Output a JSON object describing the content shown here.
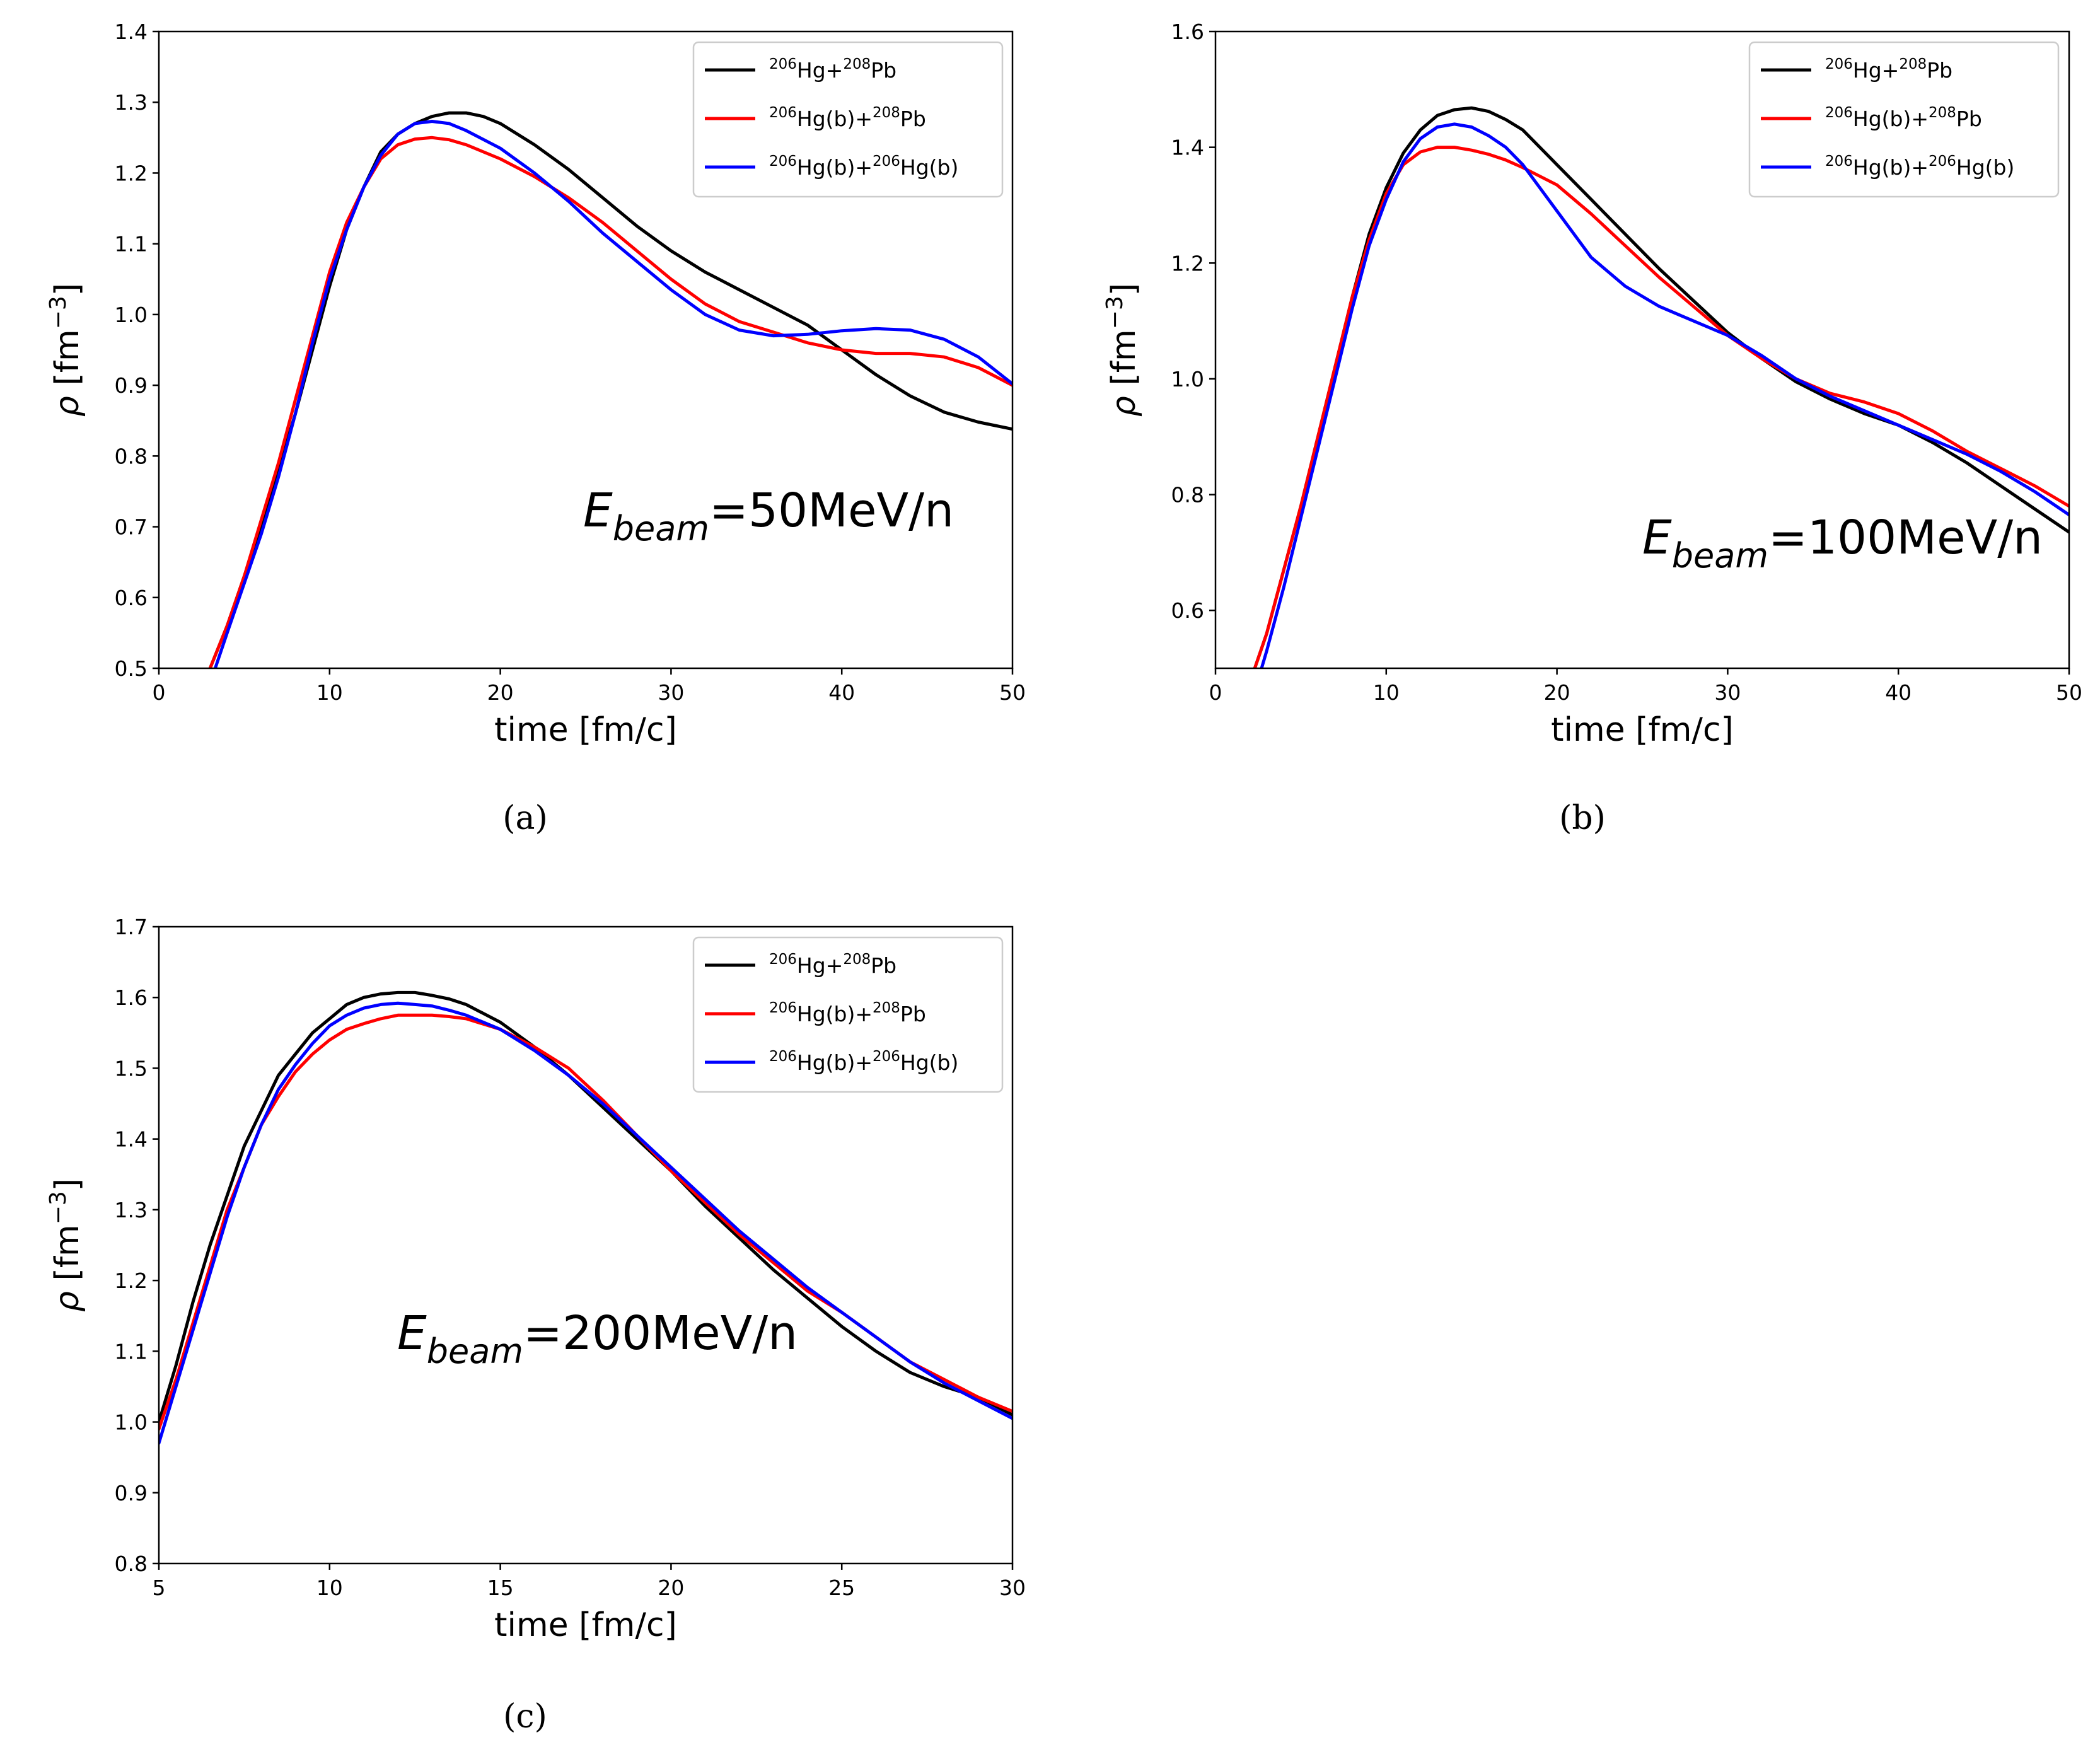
{
  "colors": {
    "black": "#000000",
    "red": "#ff0000",
    "blue": "#0000ff"
  },
  "legend_entries": [
    {
      "color": "#000000",
      "parts": [
        {
          "t": "206",
          "sup": true
        },
        {
          "t": "Hg+"
        },
        {
          "t": "208",
          "sup": true
        },
        {
          "t": "Pb"
        }
      ]
    },
    {
      "color": "#ff0000",
      "parts": [
        {
          "t": "206",
          "sup": true
        },
        {
          "t": "Hg(b)+"
        },
        {
          "t": "208",
          "sup": true
        },
        {
          "t": "Pb"
        }
      ]
    },
    {
      "color": "#0000ff",
      "parts": [
        {
          "t": "206",
          "sup": true
        },
        {
          "t": "Hg(b)+"
        },
        {
          "t": "206",
          "sup": true
        },
        {
          "t": "Hg(b)"
        }
      ]
    }
  ],
  "chart_data": [
    {
      "type": "line",
      "caption": "(a)",
      "annotation": {
        "symbol": "E",
        "subscript": "beam",
        "value": "=50MeV/n"
      },
      "xlabel": "time [fm/c]",
      "ylabel": {
        "symbol": "ρ",
        "unit": " [fm",
        "exp": "−3",
        "close": "]"
      },
      "xlim": [
        0,
        50
      ],
      "ylim": [
        0.5,
        1.4
      ],
      "xticks": [
        "0",
        "10",
        "20",
        "30",
        "40",
        "50"
      ],
      "yticks": [
        "0.5",
        "0.6",
        "0.7",
        "0.8",
        "0.9",
        "1.0",
        "1.1",
        "1.2",
        "1.3",
        "1.4"
      ],
      "legend_position": "upper right",
      "series": [
        {
          "name": "206Hg+208Pb",
          "color": "#000000",
          "x": [
            3,
            4,
            5,
            6,
            7,
            8,
            9,
            10,
            11,
            12,
            13,
            14,
            15,
            16,
            17,
            18,
            19,
            20,
            22,
            24,
            26,
            28,
            30,
            32,
            34,
            36,
            38,
            40,
            42,
            44,
            46,
            48,
            50
          ],
          "y": [
            0.5,
            0.56,
            0.63,
            0.7,
            0.78,
            0.86,
            0.95,
            1.04,
            1.12,
            1.18,
            1.23,
            1.255,
            1.27,
            1.28,
            1.285,
            1.285,
            1.28,
            1.27,
            1.24,
            1.205,
            1.165,
            1.125,
            1.09,
            1.06,
            1.035,
            1.01,
            0.985,
            0.95,
            0.915,
            0.885,
            0.862,
            0.848,
            0.838
          ]
        },
        {
          "name": "206Hg(b)+208Pb",
          "color": "#ff0000",
          "x": [
            3,
            4,
            5,
            6,
            7,
            8,
            9,
            10,
            11,
            12,
            13,
            14,
            15,
            16,
            17,
            18,
            20,
            22,
            24,
            26,
            28,
            30,
            32,
            34,
            36,
            38,
            40,
            42,
            44,
            46,
            48,
            50
          ],
          "y": [
            0.5,
            0.56,
            0.63,
            0.71,
            0.79,
            0.88,
            0.97,
            1.06,
            1.13,
            1.18,
            1.22,
            1.24,
            1.248,
            1.25,
            1.247,
            1.24,
            1.22,
            1.195,
            1.165,
            1.13,
            1.09,
            1.05,
            1.015,
            0.99,
            0.975,
            0.96,
            0.95,
            0.945,
            0.945,
            0.94,
            0.925,
            0.9
          ]
        },
        {
          "name": "206Hg(b)+206Hg(b)",
          "color": "#0000ff",
          "x": [
            3.3,
            4,
            5,
            6,
            7,
            8,
            9,
            10,
            11,
            12,
            13,
            14,
            15,
            16,
            17,
            18,
            20,
            22,
            24,
            26,
            28,
            30,
            32,
            34,
            36,
            38,
            40,
            42,
            44,
            46,
            48,
            50
          ],
          "y": [
            0.5,
            0.55,
            0.62,
            0.69,
            0.77,
            0.86,
            0.96,
            1.05,
            1.12,
            1.18,
            1.225,
            1.255,
            1.27,
            1.273,
            1.27,
            1.26,
            1.235,
            1.2,
            1.16,
            1.115,
            1.075,
            1.035,
            1.0,
            0.978,
            0.97,
            0.972,
            0.977,
            0.98,
            0.978,
            0.965,
            0.94,
            0.902
          ]
        }
      ]
    },
    {
      "type": "line",
      "caption": "(b)",
      "annotation": {
        "symbol": "E",
        "subscript": "beam",
        "value": "=100MeV/n"
      },
      "xlabel": "time [fm/c]",
      "ylabel": {
        "symbol": "ρ",
        "unit": " [fm",
        "exp": "−3",
        "close": "]"
      },
      "xlim": [
        0,
        50
      ],
      "ylim": [
        0.5,
        1.6
      ],
      "xticks": [
        "0",
        "10",
        "20",
        "30",
        "40",
        "50"
      ],
      "yticks": [
        "0.6",
        "0.8",
        "1.0",
        "1.2",
        "1.4",
        "1.6"
      ],
      "legend_position": "upper right",
      "series": [
        {
          "name": "206Hg+208Pb",
          "color": "#000000",
          "x": [
            2.3,
            3,
            4,
            5,
            6,
            7,
            8,
            9,
            10,
            11,
            12,
            13,
            14,
            15,
            16,
            17,
            18,
            20,
            22,
            24,
            26,
            28,
            30,
            32,
            34,
            36,
            38,
            40,
            42,
            44,
            46,
            48,
            50
          ],
          "y": [
            0.5,
            0.56,
            0.67,
            0.78,
            0.9,
            1.02,
            1.14,
            1.25,
            1.33,
            1.39,
            1.43,
            1.455,
            1.465,
            1.468,
            1.462,
            1.448,
            1.43,
            1.37,
            1.31,
            1.25,
            1.19,
            1.135,
            1.08,
            1.035,
            0.995,
            0.965,
            0.94,
            0.92,
            0.89,
            0.855,
            0.815,
            0.775,
            0.735
          ]
        },
        {
          "name": "206Hg(b)+208Pb",
          "color": "#ff0000",
          "x": [
            2.3,
            3,
            4,
            5,
            6,
            7,
            8,
            9,
            10,
            11,
            12,
            13,
            14,
            15,
            16,
            17,
            18,
            20,
            22,
            24,
            26,
            28,
            30,
            32,
            34,
            36,
            38,
            40,
            42,
            44,
            46,
            48,
            50
          ],
          "y": [
            0.5,
            0.56,
            0.67,
            0.78,
            0.9,
            1.02,
            1.14,
            1.24,
            1.32,
            1.37,
            1.392,
            1.4,
            1.4,
            1.395,
            1.388,
            1.378,
            1.365,
            1.335,
            1.285,
            1.23,
            1.175,
            1.125,
            1.075,
            1.035,
            1.0,
            0.975,
            0.96,
            0.94,
            0.91,
            0.875,
            0.845,
            0.815,
            0.78
          ]
        },
        {
          "name": "206Hg(b)+206Hg(b)",
          "color": "#0000ff",
          "x": [
            2.7,
            3,
            4,
            5,
            6,
            7,
            8,
            9,
            10,
            11,
            12,
            13,
            14,
            15,
            16,
            17,
            18,
            20,
            22,
            24,
            26,
            28,
            30,
            32,
            34,
            36,
            38,
            40,
            42,
            44,
            46,
            48,
            50
          ],
          "y": [
            0.5,
            0.53,
            0.64,
            0.76,
            0.88,
            1.0,
            1.12,
            1.23,
            1.31,
            1.375,
            1.415,
            1.435,
            1.44,
            1.435,
            1.42,
            1.4,
            1.37,
            1.29,
            1.21,
            1.16,
            1.125,
            1.1,
            1.075,
            1.04,
            1.0,
            0.97,
            0.945,
            0.92,
            0.895,
            0.87,
            0.84,
            0.805,
            0.765
          ]
        }
      ]
    },
    {
      "type": "line",
      "caption": "(c)",
      "annotation": {
        "symbol": "E",
        "subscript": "beam",
        "value": "=200MeV/n"
      },
      "xlabel": "time [fm/c]",
      "ylabel": {
        "symbol": "ρ",
        "unit": " [fm",
        "exp": "−3",
        "close": "]"
      },
      "xlim": [
        5,
        30
      ],
      "ylim": [
        0.8,
        1.7
      ],
      "xticks": [
        "5",
        "10",
        "15",
        "20",
        "25",
        "30"
      ],
      "yticks": [
        "0.8",
        "0.9",
        "1.0",
        "1.1",
        "1.2",
        "1.3",
        "1.4",
        "1.5",
        "1.6",
        "1.7"
      ],
      "legend_position": "upper right",
      "series": [
        {
          "name": "206Hg+208Pb",
          "color": "#000000",
          "x": [
            5,
            5.5,
            6,
            6.5,
            7,
            7.5,
            8,
            8.5,
            9,
            9.5,
            10,
            10.5,
            11,
            11.5,
            12,
            12.5,
            13,
            13.5,
            14,
            15,
            16,
            17,
            18,
            19,
            20,
            21,
            22,
            23,
            24,
            25,
            26,
            27,
            28,
            29,
            30
          ],
          "y": [
            1.0,
            1.08,
            1.17,
            1.25,
            1.32,
            1.39,
            1.44,
            1.49,
            1.52,
            1.55,
            1.57,
            1.59,
            1.6,
            1.605,
            1.607,
            1.607,
            1.603,
            1.598,
            1.59,
            1.565,
            1.53,
            1.49,
            1.445,
            1.4,
            1.355,
            1.305,
            1.26,
            1.215,
            1.175,
            1.135,
            1.1,
            1.07,
            1.05,
            1.035,
            1.01
          ]
        },
        {
          "name": "206Hg(b)+208Pb",
          "color": "#ff0000",
          "x": [
            5,
            5.5,
            6,
            6.5,
            7,
            7.5,
            8,
            8.5,
            9,
            9.5,
            10,
            10.5,
            11,
            11.5,
            12,
            12.5,
            13,
            13.5,
            14,
            15,
            16,
            17,
            18,
            19,
            20,
            21,
            22,
            23,
            24,
            25,
            26,
            27,
            28,
            29,
            30
          ],
          "y": [
            0.99,
            1.06,
            1.14,
            1.22,
            1.3,
            1.36,
            1.42,
            1.46,
            1.495,
            1.52,
            1.54,
            1.555,
            1.563,
            1.57,
            1.575,
            1.575,
            1.575,
            1.573,
            1.57,
            1.555,
            1.53,
            1.5,
            1.455,
            1.405,
            1.355,
            1.31,
            1.265,
            1.225,
            1.185,
            1.155,
            1.12,
            1.085,
            1.06,
            1.035,
            1.015
          ]
        },
        {
          "name": "206Hg(b)+206Hg(b)",
          "color": "#0000ff",
          "x": [
            5,
            5.5,
            6,
            6.5,
            7,
            7.5,
            8,
            8.5,
            9,
            9.5,
            10,
            10.5,
            11,
            11.5,
            12,
            12.5,
            13,
            13.5,
            14,
            15,
            16,
            17,
            18,
            19,
            20,
            21,
            22,
            23,
            24,
            25,
            26,
            27,
            28,
            29,
            30
          ],
          "y": [
            0.97,
            1.05,
            1.13,
            1.21,
            1.29,
            1.36,
            1.42,
            1.47,
            1.505,
            1.535,
            1.56,
            1.575,
            1.585,
            1.59,
            1.592,
            1.59,
            1.588,
            1.582,
            1.575,
            1.555,
            1.525,
            1.49,
            1.45,
            1.405,
            1.36,
            1.315,
            1.27,
            1.23,
            1.19,
            1.155,
            1.12,
            1.085,
            1.055,
            1.03,
            1.005
          ]
        }
      ]
    }
  ]
}
